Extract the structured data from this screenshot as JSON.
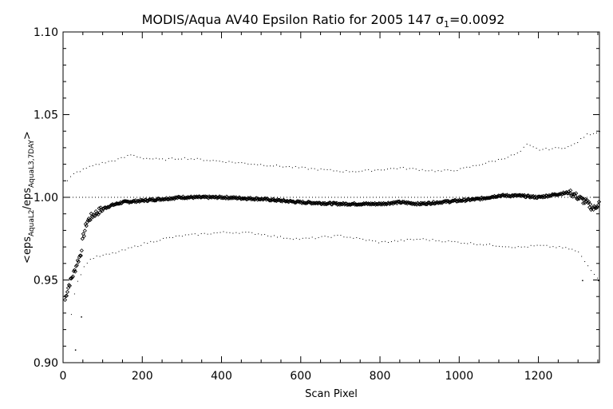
{
  "chart_data": {
    "type": "scatter",
    "title_main": "MODIS/Aqua AV40 Epsilon Ratio for 2005 147 ",
    "title_sigma": "σ",
    "title_sigma_sub": "1",
    "title_value": "=0.0092",
    "xlabel": "Scan Pixel",
    "ylabel_prefix": "<eps",
    "ylabel_sub1": "AquaL2",
    "ylabel_mid": "/eps",
    "ylabel_sub2": "AquaL3,7DAY",
    "ylabel_suffix": ">",
    "xlim": [
      0,
      1354
    ],
    "ylim": [
      0.9,
      1.1
    ],
    "x_ticks": [
      "0",
      "200",
      "400",
      "600",
      "800",
      "1000",
      "1200"
    ],
    "y_ticks": [
      "0.90",
      "0.95",
      "1.00",
      "1.05",
      "1.10"
    ],
    "reference_line": 1.0,
    "series": [
      {
        "role": "mean",
        "x": [
          5,
          10,
          15,
          20,
          25,
          30,
          35,
          40,
          45,
          50,
          60,
          70,
          80,
          100,
          120,
          150,
          200,
          250,
          300,
          400,
          500,
          600,
          700,
          800,
          850,
          900,
          1000,
          1050,
          1100,
          1150,
          1200,
          1250,
          1280,
          1300,
          1320,
          1340,
          1354
        ],
        "y": [
          0.938,
          0.943,
          0.947,
          0.95,
          0.953,
          0.956,
          0.96,
          0.963,
          0.966,
          0.975,
          0.985,
          0.988,
          0.99,
          0.993,
          0.995,
          0.997,
          0.998,
          0.999,
          1.0,
          1.0,
          0.999,
          0.997,
          0.996,
          0.996,
          0.997,
          0.996,
          0.998,
          0.999,
          1.001,
          1.001,
          1.0,
          1.002,
          1.003,
          1.0,
          0.997,
          0.993,
          0.997
        ]
      },
      {
        "role": "upper",
        "x": [
          10,
          20,
          30,
          40,
          50,
          60,
          70,
          80,
          100,
          120,
          150,
          170,
          200,
          250,
          300,
          350,
          400,
          450,
          500,
          550,
          600,
          650,
          700,
          750,
          800,
          850,
          900,
          950,
          1000,
          1050,
          1100,
          1150,
          1170,
          1200,
          1250,
          1280,
          1300,
          1320,
          1354
        ],
        "y": [
          1.01,
          1.013,
          1.015,
          1.016,
          1.017,
          1.018,
          1.019,
          1.02,
          1.021,
          1.022,
          1.024,
          1.026,
          1.024,
          1.023,
          1.024,
          1.023,
          1.022,
          1.021,
          1.02,
          1.019,
          1.018,
          1.017,
          1.016,
          1.016,
          1.017,
          1.018,
          1.017,
          1.016,
          1.017,
          1.02,
          1.023,
          1.027,
          1.032,
          1.029,
          1.03,
          1.031,
          1.034,
          1.038,
          1.04
        ]
      },
      {
        "role": "lower",
        "x": [
          20,
          30,
          40,
          50,
          60,
          70,
          80,
          100,
          120,
          150,
          200,
          250,
          300,
          350,
          400,
          450,
          500,
          550,
          600,
          650,
          700,
          750,
          800,
          850,
          900,
          950,
          1000,
          1050,
          1100,
          1150,
          1200,
          1250,
          1280,
          1300,
          1320,
          1354
        ],
        "y": [
          0.93,
          0.945,
          0.952,
          0.957,
          0.961,
          0.963,
          0.964,
          0.965,
          0.966,
          0.968,
          0.972,
          0.975,
          0.977,
          0.978,
          0.979,
          0.979,
          0.978,
          0.976,
          0.975,
          0.976,
          0.977,
          0.975,
          0.973,
          0.974,
          0.975,
          0.974,
          0.973,
          0.972,
          0.971,
          0.97,
          0.971,
          0.97,
          0.969,
          0.967,
          0.96,
          0.95
        ]
      }
    ],
    "outliers": [
      {
        "x": 30,
        "y": 0.908
      },
      {
        "x": 45,
        "y": 0.928
      },
      {
        "x": 1310,
        "y": 0.95
      },
      {
        "x": 1350,
        "y": 0.95
      }
    ]
  }
}
